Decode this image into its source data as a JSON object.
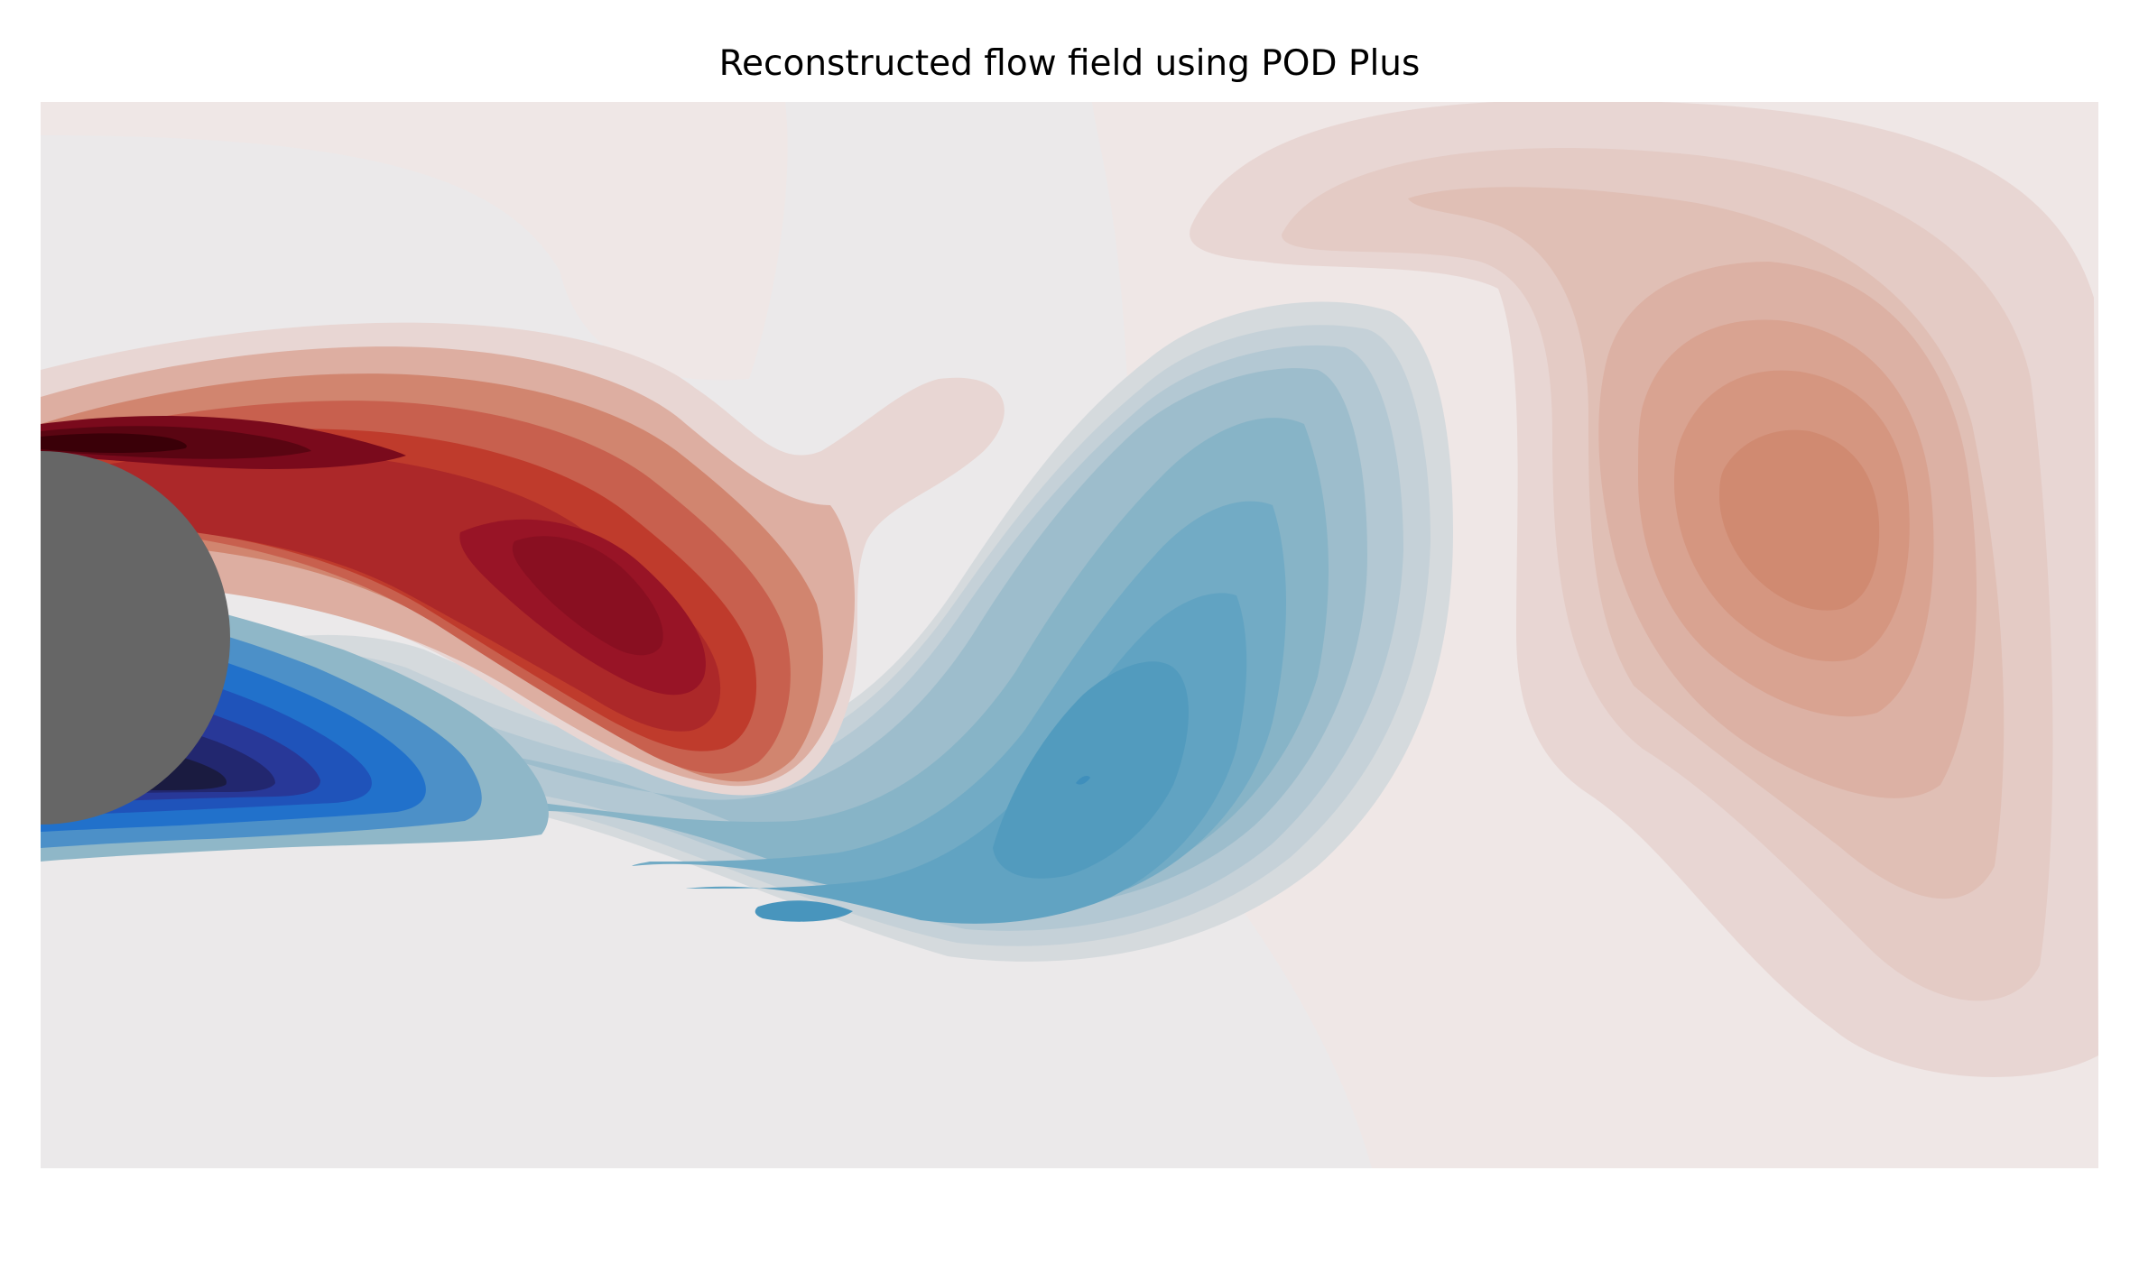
{
  "chart_data": {
    "type": "heatmap",
    "subtype": "filled-contour",
    "title": "Reconstructed flow field using POD Plus",
    "xlabel": "",
    "ylabel": "",
    "axes_visible": false,
    "grid": false,
    "legend": "none",
    "colormap": "diverging blue-white-red",
    "colors": {
      "background": "#ebe9ea",
      "obstacle": "#666666",
      "positive_max": "#3a0008",
      "positive_strong": "#981426",
      "positive_mid": "#bf3b2c",
      "positive_weak": "#d1856f",
      "positive_faint": "#e8d6d3",
      "negative_faint": "#d5dadd",
      "negative_weak": "#8fb7c8",
      "negative_mid": "#4f99bd",
      "negative_strong": "#1366cc",
      "negative_max": "#1a1b40"
    },
    "obstacle": {
      "shape": "circle",
      "label": ""
    },
    "structures": [
      {
        "sign": "positive",
        "description_key": "upper shear layer",
        "peak_level": 1.0
      },
      {
        "sign": "negative",
        "description_key": "lower shear layer",
        "peak_level": -1.0
      },
      {
        "sign": "positive",
        "description_key": "upper shed vortex",
        "peak_level": 0.55
      },
      {
        "sign": "negative",
        "description_key": "lower shed vortex",
        "peak_level": -0.45
      },
      {
        "sign": "positive",
        "description_key": "downstream vortex",
        "peak_level": 0.3
      }
    ]
  }
}
